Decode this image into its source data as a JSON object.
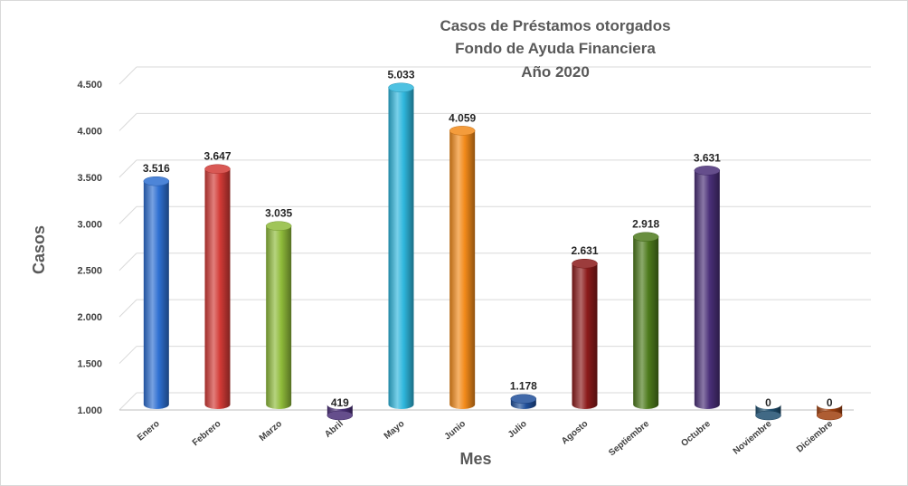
{
  "chart_data": {
    "type": "bar",
    "title_lines": [
      "Casos de Préstamos  otorgados",
      "Fondo de Ayuda Financiera",
      "Año 2020"
    ],
    "xlabel": "Mes",
    "ylabel": "Casos",
    "categories": [
      "Enero",
      "Febrero",
      "Marzo",
      "Abril",
      "Mayo",
      "Junio",
      "Julio",
      "Agosto",
      "Septiembre",
      "Octubre",
      "Noviembre",
      "Diciembre"
    ],
    "values": [
      3516,
      3647,
      3035,
      419,
      5033,
      4059,
      1178,
      2631,
      2918,
      3631,
      0,
      0
    ],
    "value_labels": [
      "3.516",
      "3.647",
      "3.035",
      "419",
      "5.033",
      "4.059",
      "1.178",
      "2.631",
      "2.918",
      "3.631",
      "0",
      "0"
    ],
    "bar_heights_in_axis_units": [
      3516,
      3647,
      3035,
      1000,
      4522,
      4059,
      1178,
      2631,
      2918,
      3631,
      1000,
      1000
    ],
    "colors": [
      "#2e6fd1",
      "#d23a36",
      "#8fbb3a",
      "#4a2f78",
      "#2fb7dd",
      "#f28a1a",
      "#1f4f9a",
      "#8b1a1a",
      "#4d7a1c",
      "#4a2f78",
      "#1f4f6f",
      "#a0400f"
    ],
    "ylim": [
      1000,
      4500
    ],
    "yticks": [
      1000,
      1500,
      2000,
      2500,
      3000,
      3500,
      4000,
      4500
    ],
    "ytick_labels": [
      "1.000",
      "1.500",
      "2.000",
      "2.500",
      "3.000",
      "3.500",
      "4.000",
      "4.500"
    ],
    "grid": true,
    "legend": "none"
  }
}
